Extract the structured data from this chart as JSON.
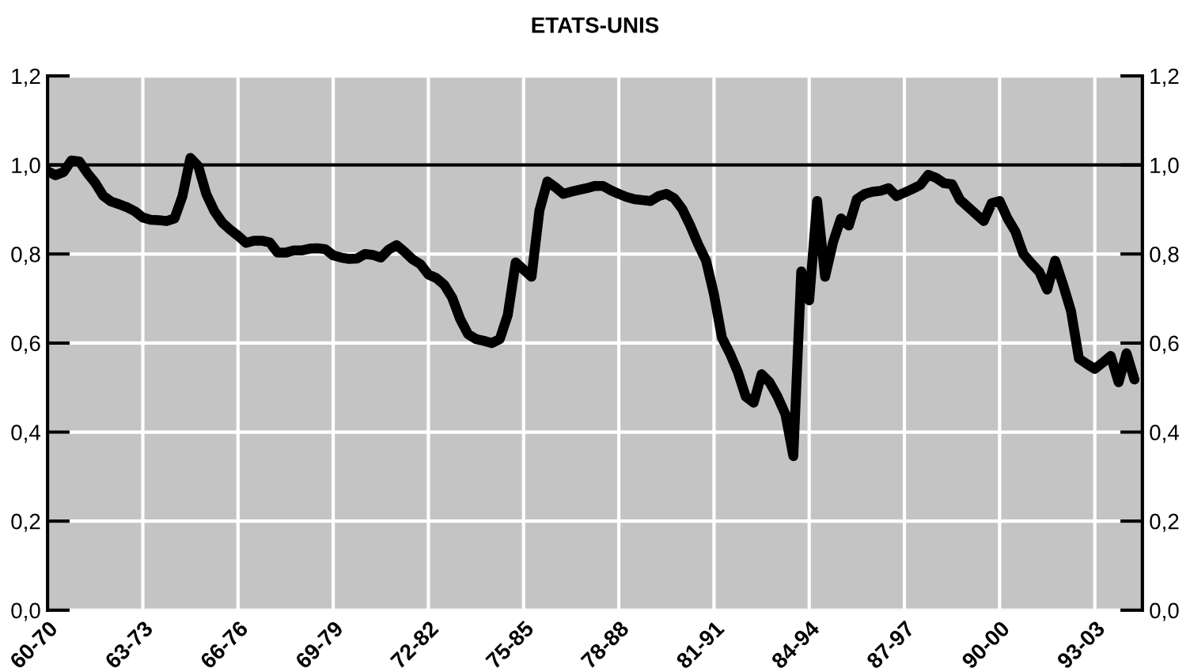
{
  "chart_data": {
    "type": "line",
    "title": "ETATS-UNIS",
    "categories": [
      "60-70",
      null,
      null,
      null,
      null,
      null,
      null,
      null,
      null,
      null,
      null,
      null,
      "63-73",
      null,
      null,
      null,
      null,
      null,
      null,
      null,
      null,
      null,
      null,
      null,
      "66-76",
      null,
      null,
      null,
      null,
      null,
      null,
      null,
      null,
      null,
      null,
      null,
      "69-79",
      null,
      null,
      null,
      null,
      null,
      null,
      null,
      null,
      null,
      null,
      null,
      "72-82",
      null,
      null,
      null,
      null,
      null,
      null,
      null,
      null,
      null,
      null,
      null,
      "75-85",
      null,
      null,
      null,
      null,
      null,
      null,
      null,
      null,
      null,
      null,
      null,
      "78-88",
      null,
      null,
      null,
      null,
      null,
      null,
      null,
      null,
      null,
      null,
      null,
      "81-91",
      null,
      null,
      null,
      null,
      null,
      null,
      null,
      null,
      null,
      null,
      null,
      "84-94",
      null,
      null,
      null,
      null,
      null,
      null,
      null,
      null,
      null,
      null,
      null,
      "87-97",
      null,
      null,
      null,
      null,
      null,
      null,
      null,
      null,
      null,
      null,
      null,
      "90-00",
      null,
      null,
      null,
      null,
      null,
      null,
      null,
      null,
      null,
      null,
      null,
      "93-03",
      null,
      null,
      null,
      null,
      null
    ],
    "series": [
      {
        "color": "#000000",
        "values": [
          0.986,
          0.977,
          0.984,
          1.01,
          1.008,
          0.982,
          0.96,
          0.931,
          0.918,
          0.912,
          0.905,
          0.896,
          0.882,
          0.877,
          0.876,
          0.874,
          0.88,
          0.93,
          1.016,
          0.997,
          0.935,
          0.897,
          0.871,
          0.855,
          0.841,
          0.825,
          0.83,
          0.83,
          0.826,
          0.803,
          0.803,
          0.808,
          0.808,
          0.812,
          0.813,
          0.811,
          0.797,
          0.792,
          0.789,
          0.79,
          0.8,
          0.798,
          0.792,
          0.81,
          0.82,
          0.805,
          0.788,
          0.777,
          0.754,
          0.746,
          0.731,
          0.702,
          0.654,
          0.62,
          0.609,
          0.605,
          0.6,
          0.609,
          0.663,
          0.781,
          0.765,
          0.749,
          0.898,
          0.963,
          0.95,
          0.935,
          0.94,
          0.944,
          0.948,
          0.953,
          0.953,
          0.943,
          0.935,
          0.928,
          0.923,
          0.921,
          0.919,
          0.93,
          0.935,
          0.925,
          0.901,
          0.864,
          0.822,
          0.785,
          0.709,
          0.612,
          0.577,
          0.535,
          0.48,
          0.466,
          0.53,
          0.512,
          0.48,
          0.44,
          0.346,
          0.761,
          0.696,
          0.919,
          0.749,
          0.826,
          0.88,
          0.864,
          0.923,
          0.935,
          0.94,
          0.942,
          0.948,
          0.93,
          0.938,
          0.946,
          0.955,
          0.978,
          0.971,
          0.959,
          0.957,
          0.922,
          0.906,
          0.89,
          0.874,
          0.914,
          0.919,
          0.88,
          0.85,
          0.8,
          0.779,
          0.76,
          0.72,
          0.785,
          0.731,
          0.672,
          0.565,
          0.553,
          0.542,
          0.556,
          0.571,
          0.512,
          0.577,
          0.518
        ]
      }
    ],
    "ylim": [
      0,
      1.2
    ],
    "yticks": [
      {
        "value": 0,
        "label": "0,0"
      },
      {
        "value": 0.2,
        "label": "0,2"
      },
      {
        "value": 0.4,
        "label": "0,4"
      },
      {
        "value": 0.6,
        "label": "0,6"
      },
      {
        "value": 0.8,
        "label": "0,8"
      },
      {
        "value": 1.0,
        "label": "1,0"
      },
      {
        "value": 1.2,
        "label": "1,2"
      }
    ],
    "y2lim": [
      0,
      1.2
    ],
    "y2ticks": [
      {
        "value": 0,
        "label": "0,0"
      },
      {
        "value": 0.2,
        "label": "0,2"
      },
      {
        "value": 0.4,
        "label": "0,4"
      },
      {
        "value": 0.6,
        "label": "0,6"
      },
      {
        "value": 0.8,
        "label": "0,8"
      },
      {
        "value": 1.0,
        "label": "1,0"
      },
      {
        "value": 1.2,
        "label": "1,2"
      }
    ],
    "ref_lines": [
      {
        "axis": "y",
        "value": 1.0,
        "color": "#000000",
        "line_style": "solid"
      }
    ],
    "grid": true,
    "marker": "none",
    "line_style": "solid"
  }
}
